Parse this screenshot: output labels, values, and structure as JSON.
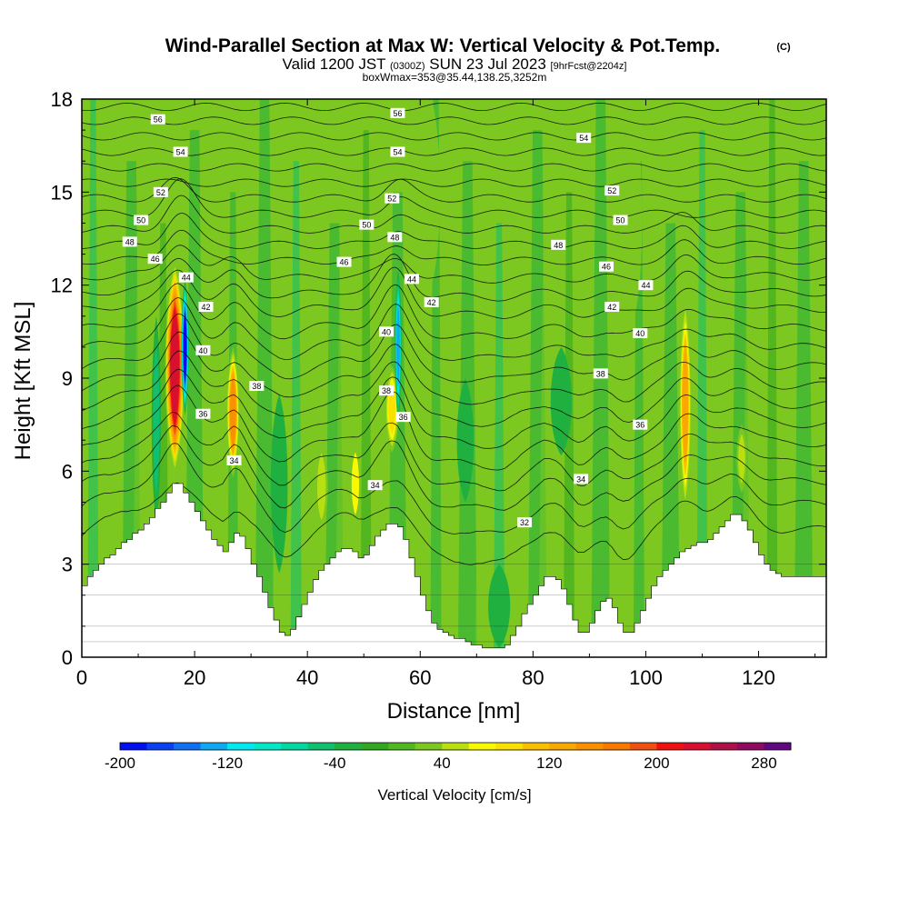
{
  "chart_data": {
    "type": "heatmap",
    "title": "Wind-Parallel Section at Max W: Vertical Velocity & Pot.Temp.",
    "title_mark": "(C)",
    "subtitle_parts": [
      "Valid 1200 JST",
      "(0300Z)",
      "SUN 23 Jul 2023",
      "[9hrFcst@2204z]"
    ],
    "subtitle2": "boxWmax=353@35.44,138.25,3252m",
    "xlabel": "Distance [nm]",
    "ylabel": "Height [Kft MSL]",
    "xlim": [
      0,
      132
    ],
    "ylim": [
      0,
      18
    ],
    "x_ticks": [
      0,
      20,
      40,
      60,
      80,
      100,
      120
    ],
    "x_tick_labels": [
      "0",
      "20",
      "40",
      "60",
      "80",
      "100",
      "120"
    ],
    "y_ticks": [
      0,
      3,
      6,
      9,
      12,
      15,
      18
    ],
    "y_tick_labels": [
      "0",
      "3",
      "6",
      "9",
      "12",
      "15",
      "18"
    ],
    "colorbar": {
      "label": "Vertical Velocity [cm/s]",
      "tick_values": [
        -200,
        -120,
        -40,
        40,
        120,
        200,
        280
      ],
      "tick_labels": [
        "-200",
        "-120",
        "-40",
        "40",
        "120",
        "200",
        "280"
      ],
      "levels": [
        -200,
        -180,
        -160,
        -140,
        -120,
        -100,
        -80,
        -60,
        -40,
        -20,
        0,
        20,
        40,
        60,
        80,
        100,
        120,
        140,
        160,
        180,
        200,
        220,
        240,
        260,
        280,
        300
      ],
      "colors": [
        "#0010f0",
        "#0a40f0",
        "#1070f0",
        "#10a8f0",
        "#00e8f0",
        "#00e8c8",
        "#00d8a0",
        "#10c070",
        "#20b040",
        "#30a820",
        "#50b820",
        "#7cc820",
        "#b8e010",
        "#f8f800",
        "#f8e000",
        "#f8c000",
        "#f8a800",
        "#f89000",
        "#f87800",
        "#f05010",
        "#f01010",
        "#d81030",
        "#b01048",
        "#900a60",
        "#600880"
      ]
    },
    "terrain_profile": {
      "x": [
        0,
        1,
        2,
        3,
        4,
        5,
        6,
        7,
        8,
        9,
        10,
        11,
        12,
        13,
        14,
        15,
        16,
        17,
        18,
        19,
        20,
        21,
        22,
        23,
        24,
        25,
        26,
        27,
        28,
        29,
        30,
        31,
        32,
        33,
        34,
        35,
        36,
        37,
        38,
        39,
        40,
        41,
        42,
        43,
        44,
        45,
        46,
        47,
        48,
        49,
        50,
        51,
        52,
        53,
        54,
        55,
        56,
        57,
        58,
        59,
        60,
        61,
        62,
        63,
        64,
        65,
        66,
        67,
        68,
        69,
        70,
        71,
        72,
        73,
        74,
        75,
        76,
        77,
        78,
        79,
        80,
        81,
        82,
        83,
        84,
        85,
        86,
        87,
        88,
        89,
        90,
        91,
        92,
        93,
        94,
        95,
        96,
        97,
        98,
        99,
        100,
        101,
        102,
        103,
        104,
        105,
        106,
        107,
        108,
        109,
        110,
        111,
        112,
        113,
        114,
        115,
        116,
        117,
        118,
        119,
        120,
        121,
        122,
        123,
        124,
        125,
        126,
        127,
        128,
        129,
        130,
        131,
        132
      ],
      "height": [
        2.3,
        2.6,
        2.8,
        3.0,
        3.2,
        3.3,
        3.5,
        3.7,
        3.8,
        4.0,
        4.1,
        4.3,
        4.5,
        4.8,
        5.0,
        5.3,
        5.6,
        5.6,
        5.3,
        5.0,
        4.7,
        4.4,
        4.1,
        3.8,
        3.6,
        3.4,
        3.7,
        4.0,
        3.9,
        3.5,
        3.0,
        2.6,
        2.1,
        1.6,
        1.2,
        0.8,
        0.7,
        0.9,
        1.3,
        1.7,
        2.1,
        2.5,
        2.8,
        3.0,
        3.2,
        3.4,
        3.5,
        3.5,
        3.4,
        3.2,
        3.3,
        3.6,
        3.9,
        4.1,
        4.3,
        4.3,
        4.2,
        3.8,
        3.2,
        2.6,
        2.0,
        1.5,
        1.1,
        0.9,
        0.8,
        0.7,
        0.6,
        0.6,
        0.5,
        0.4,
        0.4,
        0.3,
        0.3,
        0.3,
        0.3,
        0.4,
        0.7,
        1.0,
        1.4,
        1.7,
        2.0,
        2.3,
        2.6,
        2.6,
        2.5,
        2.2,
        1.7,
        1.2,
        0.8,
        0.8,
        1.1,
        1.5,
        1.8,
        1.9,
        1.6,
        1.1,
        0.8,
        0.8,
        1.1,
        1.5,
        1.9,
        2.3,
        2.6,
        2.8,
        3.0,
        3.2,
        3.4,
        3.5,
        3.6,
        3.7,
        3.7,
        3.8,
        4.0,
        4.2,
        4.4,
        4.6,
        4.6,
        4.4,
        4.1,
        3.7,
        3.3,
        3.0,
        2.8,
        2.7,
        2.6,
        2.6,
        2.6,
        2.6,
        2.6,
        2.6,
        2.6,
        2.6,
        2.6
      ]
    },
    "velocity_cells": [
      {
        "x": 16.5,
        "top": 12.8,
        "bottom": 5.9,
        "half_width": 2.3,
        "value": 230
      },
      {
        "x": 18.3,
        "top": 12.2,
        "bottom": 7.8,
        "half_width": 0.9,
        "value": -185
      },
      {
        "x": 13.2,
        "top": 11.0,
        "bottom": 4.3,
        "half_width": 1.1,
        "value": -60
      },
      {
        "x": 26.8,
        "top": 10.0,
        "bottom": 5.8,
        "half_width": 1.5,
        "value": 150
      },
      {
        "x": 35.0,
        "top": 8.5,
        "bottom": 2.7,
        "half_width": 2.0,
        "value": -40
      },
      {
        "x": 42.5,
        "top": 7.0,
        "bottom": 4.0,
        "half_width": 1.5,
        "value": 45
      },
      {
        "x": 48.5,
        "top": 7.0,
        "bottom": 4.2,
        "half_width": 1.3,
        "value": 60
      },
      {
        "x": 55.0,
        "top": 9.4,
        "bottom": 6.6,
        "half_width": 1.6,
        "value": 95
      },
      {
        "x": 56.1,
        "top": 12.5,
        "bottom": 7.6,
        "half_width": 0.8,
        "value": -125
      },
      {
        "x": 74.0,
        "top": 3.0,
        "bottom": 0.3,
        "half_width": 2.6,
        "value": -30
      },
      {
        "x": 107.0,
        "top": 11.6,
        "bottom": 4.7,
        "half_width": 1.4,
        "value": 125
      },
      {
        "x": 117.0,
        "top": 7.5,
        "bottom": 5.3,
        "half_width": 1.2,
        "value": 55
      },
      {
        "x": 62.0,
        "top": 18.0,
        "bottom": 12.0,
        "half_width": 2.0,
        "value": 30
      },
      {
        "x": 98.0,
        "top": 17.5,
        "bottom": 11.0,
        "half_width": 1.8,
        "value": 30
      },
      {
        "x": 85.0,
        "top": 10.0,
        "bottom": 6.5,
        "half_width": 2.5,
        "value": -25
      },
      {
        "x": 68.0,
        "top": 9.0,
        "bottom": 5.0,
        "half_width": 2.0,
        "value": -30
      }
    ],
    "theta_isentropes": {
      "levels": [
        31,
        32,
        33,
        34,
        35,
        36,
        37,
        38,
        39,
        40,
        41,
        42,
        43,
        44,
        45,
        46,
        47,
        48,
        49,
        50,
        51,
        52,
        53,
        54,
        55,
        56,
        57
      ],
      "base_heights": [
        4.4,
        5.2,
        5.9,
        6.5,
        7.1,
        7.7,
        8.3,
        8.9,
        9.5,
        10.1,
        10.7,
        11.3,
        11.8,
        12.3,
        12.8,
        13.3,
        13.8,
        14.3,
        14.8,
        15.3,
        15.8,
        16.3,
        16.8,
        17.3,
        17.75,
        18.2,
        18.6
      ],
      "labeled": [
        {
          "level": "56",
          "x": 13.5,
          "y": 17.35
        },
        {
          "level": "56",
          "x": 56.0,
          "y": 17.55
        },
        {
          "level": "54",
          "x": 17.5,
          "y": 16.3
        },
        {
          "level": "54",
          "x": 56.0,
          "y": 16.3
        },
        {
          "level": "54",
          "x": 89.0,
          "y": 16.75
        },
        {
          "level": "52",
          "x": 14.0,
          "y": 15.0
        },
        {
          "level": "52",
          "x": 55.0,
          "y": 14.8
        },
        {
          "level": "52",
          "x": 94.0,
          "y": 15.05
        },
        {
          "level": "50",
          "x": 10.5,
          "y": 14.1
        },
        {
          "level": "50",
          "x": 50.5,
          "y": 13.95
        },
        {
          "level": "50",
          "x": 95.5,
          "y": 14.1
        },
        {
          "level": "48",
          "x": 8.5,
          "y": 13.4
        },
        {
          "level": "48",
          "x": 55.5,
          "y": 13.55
        },
        {
          "level": "48",
          "x": 84.5,
          "y": 13.3
        },
        {
          "level": "46",
          "x": 13.0,
          "y": 12.85
        },
        {
          "level": "46",
          "x": 46.5,
          "y": 12.75
        },
        {
          "level": "46",
          "x": 93.0,
          "y": 12.6
        },
        {
          "level": "44",
          "x": 18.5,
          "y": 12.25
        },
        {
          "level": "44",
          "x": 58.5,
          "y": 12.2
        },
        {
          "level": "44",
          "x": 100.0,
          "y": 12.0
        },
        {
          "level": "42",
          "x": 22.0,
          "y": 11.3
        },
        {
          "level": "42",
          "x": 62.0,
          "y": 11.45
        },
        {
          "level": "42",
          "x": 94.0,
          "y": 11.3
        },
        {
          "level": "40",
          "x": 21.5,
          "y": 9.9
        },
        {
          "level": "40",
          "x": 54.0,
          "y": 10.5
        },
        {
          "level": "40",
          "x": 99.0,
          "y": 10.45
        },
        {
          "level": "38",
          "x": 31.0,
          "y": 8.75
        },
        {
          "level": "38",
          "x": 54.0,
          "y": 8.6
        },
        {
          "level": "38",
          "x": 92.0,
          "y": 9.15
        },
        {
          "level": "36",
          "x": 21.5,
          "y": 7.85
        },
        {
          "level": "36",
          "x": 57.0,
          "y": 7.75
        },
        {
          "level": "36",
          "x": 99.0,
          "y": 7.5
        },
        {
          "level": "34",
          "x": 27.0,
          "y": 6.35
        },
        {
          "level": "34",
          "x": 52.0,
          "y": 5.55
        },
        {
          "level": "34",
          "x": 88.5,
          "y": 5.75
        },
        {
          "level": "32",
          "x": 78.5,
          "y": 4.35
        }
      ]
    }
  }
}
